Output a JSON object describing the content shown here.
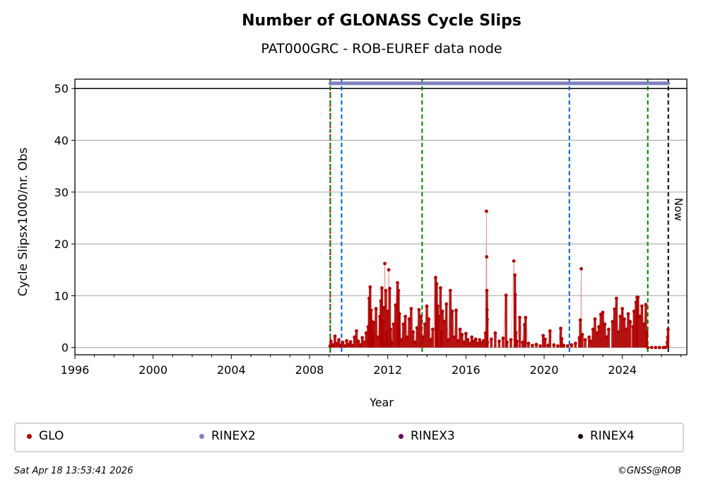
{
  "chart_data": {
    "type": "scatter",
    "title": "Number of GLONASS Cycle Slips",
    "subtitle": "PAT000GRC - ROB-EUREF data node",
    "xlabel": "Year",
    "ylabel": "Cycle Slipsx1000/nr. Obs",
    "xlim": [
      1996,
      2027.3
    ],
    "ylim": [
      -1.4,
      51.8
    ],
    "xticks": [
      "1996",
      "2000",
      "2004",
      "2008",
      "2012",
      "2016",
      "2020",
      "2024"
    ],
    "yticks": [
      "0",
      "10",
      "20",
      "30",
      "40",
      "50"
    ],
    "grid": "horizontal",
    "now_label": "Now",
    "vlines": [
      {
        "x": 2009.06,
        "color": "#d00000",
        "style": "dotted"
      },
      {
        "x": 2009.06,
        "color": "#008000",
        "style": "dashed"
      },
      {
        "x": 2009.64,
        "color": "#0060c0",
        "style": "dashed"
      },
      {
        "x": 2013.76,
        "color": "#008000",
        "style": "dashed"
      },
      {
        "x": 2021.29,
        "color": "#0060c0",
        "style": "dashed"
      },
      {
        "x": 2025.3,
        "color": "#008000",
        "style": "dashed"
      },
      {
        "x": 2026.35,
        "color": "#000000",
        "style": "dashed"
      }
    ],
    "rinex2_range": {
      "start": 2009.06,
      "end": 2026.35,
      "y": 51
    },
    "series": [
      {
        "name": "GLO",
        "color": "#b00000",
        "points": [
          [
            2009.05,
            0.3
          ],
          [
            2009.1,
            1.2
          ],
          [
            2009.2,
            0.5
          ],
          [
            2009.3,
            2.2
          ],
          [
            2009.4,
            0.8
          ],
          [
            2009.5,
            1.5
          ],
          [
            2009.6,
            0.4
          ],
          [
            2009.7,
            1.0
          ],
          [
            2009.8,
            0.3
          ],
          [
            2009.9,
            1.3
          ],
          [
            2010.0,
            0.6
          ],
          [
            2010.1,
            1.1
          ],
          [
            2010.2,
            0.4
          ],
          [
            2010.3,
            2.0
          ],
          [
            2010.4,
            3.2
          ],
          [
            2010.5,
            1.2
          ],
          [
            2010.6,
            0.5
          ],
          [
            2010.7,
            1.9
          ],
          [
            2010.8,
            1.0
          ],
          [
            2010.9,
            2.8
          ],
          [
            2011.0,
            4.0
          ],
          [
            2011.05,
            9.5
          ],
          [
            2011.1,
            11.7
          ],
          [
            2011.15,
            7.2
          ],
          [
            2011.2,
            5.0
          ],
          [
            2011.25,
            2.5
          ],
          [
            2011.3,
            4.8
          ],
          [
            2011.4,
            7.5
          ],
          [
            2011.5,
            2.0
          ],
          [
            2011.6,
            6.0
          ],
          [
            2011.65,
            9.0
          ],
          [
            2011.7,
            11.5
          ],
          [
            2011.75,
            5.0
          ],
          [
            2011.8,
            7.7
          ],
          [
            2011.85,
            16.2
          ],
          [
            2011.9,
            11.0
          ],
          [
            2011.95,
            3.0
          ],
          [
            2012.0,
            7.0
          ],
          [
            2012.05,
            15.0
          ],
          [
            2012.1,
            11.4
          ],
          [
            2012.15,
            3.5
          ],
          [
            2012.2,
            1.0
          ],
          [
            2012.3,
            4.5
          ],
          [
            2012.4,
            8.2
          ],
          [
            2012.5,
            12.5
          ],
          [
            2012.55,
            11.0
          ],
          [
            2012.6,
            6.5
          ],
          [
            2012.7,
            1.5
          ],
          [
            2012.8,
            4.5
          ],
          [
            2012.9,
            6.0
          ],
          [
            2013.0,
            2.0
          ],
          [
            2013.1,
            5.5
          ],
          [
            2013.2,
            7.5
          ],
          [
            2013.3,
            3.0
          ],
          [
            2013.4,
            1.0
          ],
          [
            2013.5,
            3.8
          ],
          [
            2013.6,
            7.3
          ],
          [
            2013.7,
            6.0
          ],
          [
            2013.8,
            2.0
          ],
          [
            2013.9,
            4.5
          ],
          [
            2014.0,
            8.0
          ],
          [
            2014.1,
            5.5
          ],
          [
            2014.2,
            1.5
          ],
          [
            2014.3,
            3.5
          ],
          [
            2014.45,
            13.5
          ],
          [
            2014.5,
            12.3
          ],
          [
            2014.55,
            8.0
          ],
          [
            2014.6,
            6.0
          ],
          [
            2014.7,
            11.5
          ],
          [
            2014.75,
            3.0
          ],
          [
            2014.8,
            7.0
          ],
          [
            2014.9,
            5.0
          ],
          [
            2015.0,
            8.4
          ],
          [
            2015.1,
            1.5
          ],
          [
            2015.2,
            11.0
          ],
          [
            2015.3,
            7.0
          ],
          [
            2015.4,
            2.0
          ],
          [
            2015.5,
            7.2
          ],
          [
            2015.6,
            1.3
          ],
          [
            2015.7,
            3.5
          ],
          [
            2015.8,
            2.5
          ],
          [
            2015.9,
            1.0
          ],
          [
            2016.0,
            2.7
          ],
          [
            2016.1,
            1.5
          ],
          [
            2016.2,
            0.8
          ],
          [
            2016.3,
            2.0
          ],
          [
            2016.4,
            1.2
          ],
          [
            2016.5,
            1.6
          ],
          [
            2016.6,
            0.8
          ],
          [
            2016.7,
            1.5
          ],
          [
            2016.8,
            0.9
          ],
          [
            2016.9,
            1.3
          ],
          [
            2017.0,
            2.8
          ],
          [
            2017.05,
            26.3
          ],
          [
            2017.06,
            17.5
          ],
          [
            2017.07,
            11.0
          ],
          [
            2017.08,
            7.3
          ],
          [
            2017.09,
            5.4
          ],
          [
            2017.1,
            1.0
          ],
          [
            2017.3,
            1.6
          ],
          [
            2017.5,
            2.8
          ],
          [
            2017.7,
            1.2
          ],
          [
            2017.9,
            1.8
          ],
          [
            2018.05,
            10.1
          ],
          [
            2018.1,
            1.0
          ],
          [
            2018.3,
            1.5
          ],
          [
            2018.45,
            16.7
          ],
          [
            2018.5,
            14.0
          ],
          [
            2018.52,
            10.2
          ],
          [
            2018.55,
            2.9
          ],
          [
            2018.6,
            1.2
          ],
          [
            2018.75,
            5.8
          ],
          [
            2018.9,
            1.0
          ],
          [
            2019.0,
            4.4
          ],
          [
            2019.05,
            5.8
          ],
          [
            2019.2,
            0.8
          ],
          [
            2019.4,
            0.4
          ],
          [
            2019.6,
            0.6
          ],
          [
            2019.8,
            0.3
          ],
          [
            2019.95,
            2.3
          ],
          [
            2020.05,
            1.6
          ],
          [
            2020.2,
            0.4
          ],
          [
            2020.3,
            3.2
          ],
          [
            2020.5,
            0.5
          ],
          [
            2020.7,
            0.3
          ],
          [
            2020.85,
            3.7
          ],
          [
            2020.9,
            1.7
          ],
          [
            2021.0,
            0.4
          ],
          [
            2021.2,
            0.3
          ],
          [
            2021.4,
            0.5
          ],
          [
            2021.6,
            0.8
          ],
          [
            2021.8,
            1.9
          ],
          [
            2021.85,
            5.3
          ],
          [
            2021.9,
            15.2
          ],
          [
            2021.95,
            2.5
          ],
          [
            2022.1,
            1.5
          ],
          [
            2022.3,
            2.0
          ],
          [
            2022.4,
            1.2
          ],
          [
            2022.5,
            3.5
          ],
          [
            2022.6,
            5.5
          ],
          [
            2022.7,
            2.8
          ],
          [
            2022.8,
            4.0
          ],
          [
            2022.9,
            6.4
          ],
          [
            2023.0,
            6.8
          ],
          [
            2023.1,
            4.5
          ],
          [
            2023.2,
            2.0
          ],
          [
            2023.3,
            3.5
          ],
          [
            2023.5,
            5.0
          ],
          [
            2023.6,
            7.4
          ],
          [
            2023.7,
            9.5
          ],
          [
            2023.8,
            3.0
          ],
          [
            2023.9,
            6.0
          ],
          [
            2024.0,
            7.5
          ],
          [
            2024.1,
            5.5
          ],
          [
            2024.2,
            3.5
          ],
          [
            2024.3,
            6.5
          ],
          [
            2024.4,
            5.0
          ],
          [
            2024.55,
            4.0
          ],
          [
            2024.6,
            7.0
          ],
          [
            2024.7,
            8.7
          ],
          [
            2024.75,
            9.7
          ],
          [
            2024.8,
            9.7
          ],
          [
            2024.9,
            6.0
          ],
          [
            2025.0,
            8.0
          ],
          [
            2025.1,
            4.5
          ],
          [
            2025.2,
            8.3
          ],
          [
            2025.25,
            3.0
          ],
          [
            2025.3,
            0.0
          ],
          [
            2025.5,
            0.0
          ],
          [
            2025.7,
            0.0
          ],
          [
            2025.9,
            0.0
          ],
          [
            2026.1,
            0.0
          ],
          [
            2026.2,
            0.0
          ],
          [
            2026.3,
            1.0
          ],
          [
            2026.32,
            2.0
          ],
          [
            2026.34,
            3.5
          ]
        ]
      }
    ],
    "legend": {
      "placement": "bottom",
      "entries": [
        {
          "label": "GLO",
          "color": "#b00000"
        },
        {
          "label": "RINEX2",
          "color": "#7f7fbf"
        },
        {
          "label": "RINEX3",
          "color": "#6a0060"
        },
        {
          "label": "RINEX4",
          "color": "#1a0010"
        }
      ]
    }
  },
  "footer": {
    "timestamp": "Sat Apr 18 13:53:41 2026",
    "credit": "©GNSS@ROB"
  }
}
